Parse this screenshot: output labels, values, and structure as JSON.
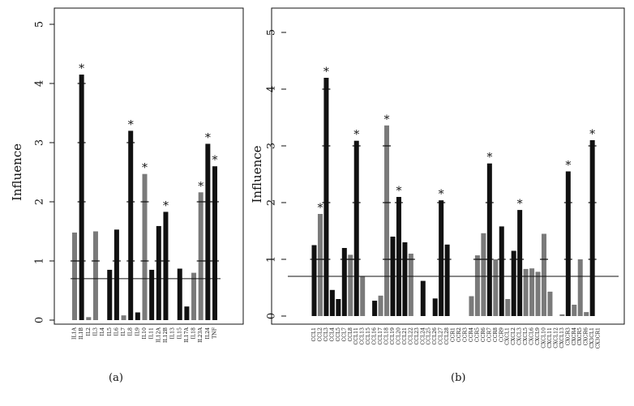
{
  "chart_data": [
    {
      "type": "bar",
      "panel_label": "(a)",
      "ylabel": "Influence",
      "ylim": [
        0,
        5
      ],
      "yticks": [
        "0",
        "1",
        "2",
        "3",
        "4",
        "5"
      ],
      "threshold": 0.7,
      "categories": [
        "IL1A",
        "IL1B",
        "IL2",
        "IL3",
        "IL4",
        "IL5",
        "IL6",
        "IL7",
        "IL8",
        "IL9",
        "IL10",
        "IL11",
        "IL12A",
        "IL12B",
        "IL13",
        "IL15",
        "IL17A",
        "IL18",
        "IL23A",
        "IL24",
        "TNF"
      ],
      "values": [
        1.48,
        4.15,
        0.05,
        1.5,
        0.0,
        0.85,
        1.53,
        0.08,
        3.2,
        0.13,
        2.47,
        0.85,
        1.59,
        1.83,
        0.0,
        0.87,
        0.23,
        0.8,
        2.16,
        2.98,
        2.6
      ],
      "colors": [
        "gray",
        "black",
        "gray",
        "gray",
        "gray",
        "black",
        "black",
        "gray",
        "black",
        "black",
        "gray",
        "black",
        "black",
        "black",
        "black",
        "black",
        "black",
        "gray",
        "gray",
        "black",
        "black"
      ],
      "starred": [
        false,
        true,
        false,
        false,
        false,
        false,
        false,
        false,
        true,
        false,
        true,
        false,
        false,
        true,
        false,
        false,
        false,
        false,
        true,
        true,
        true
      ],
      "star_label": "*",
      "colors_hex": {
        "black": "#111111",
        "gray": "#7a7a7a"
      }
    },
    {
      "type": "bar",
      "panel_label": "(b)",
      "ylabel": "Influence",
      "ylim": [
        0,
        5
      ],
      "yticks": [
        "0",
        "1",
        "2",
        "3",
        "4",
        "5"
      ],
      "threshold": 0.7,
      "categories": [
        "CCL1",
        "CCL2",
        "CCL3",
        "CCL4",
        "CCL5",
        "CCL7",
        "CCL8",
        "CCL11",
        "CCL13",
        "CCL15",
        "CCL16",
        "CCL17",
        "CCL18",
        "CCL19",
        "CCL20",
        "CCL21",
        "CCL22",
        "CCL23",
        "CCL24",
        "CCL25",
        "CCL26",
        "CCL27",
        "CCL28",
        "CCR1",
        "CCR2",
        "CCR3",
        "CCR4",
        "CCR5",
        "CCR6",
        "CCR7",
        "CCR8",
        "CCR9",
        "CXCL1",
        "CXCL2",
        "CXCL3",
        "CXCL5",
        "CXCL6",
        "CXCL9",
        "CXCL10",
        "CXCL11",
        "CXCL12",
        "CXCL13",
        "CXCR3",
        "CXCR4",
        "CXCR5",
        "CXCR6",
        "CX3CL1",
        "CX3CR1"
      ],
      "values": [
        1.25,
        1.8,
        4.2,
        0.46,
        0.3,
        1.2,
        1.08,
        3.09,
        0.7,
        0.0,
        0.27,
        0.36,
        3.36,
        1.4,
        2.1,
        1.3,
        1.1,
        0.0,
        0.62,
        0.0,
        0.31,
        2.04,
        1.26,
        0.0,
        0.0,
        0.0,
        0.35,
        1.07,
        1.46,
        2.69,
        1.0,
        1.58,
        0.3,
        1.15,
        1.87,
        0.83,
        0.84,
        0.78,
        1.45,
        0.43,
        0.0,
        0.03,
        2.55,
        0.2,
        1.0,
        0.07,
        3.1,
        0.0
      ],
      "colors": [
        "black",
        "gray",
        "black",
        "black",
        "black",
        "black",
        "gray",
        "black",
        "gray",
        "black",
        "black",
        "gray",
        "gray",
        "black",
        "black",
        "black",
        "gray",
        "black",
        "black",
        "black",
        "black",
        "black",
        "black",
        "black",
        "black",
        "black",
        "gray",
        "gray",
        "gray",
        "black",
        "gray",
        "black",
        "gray",
        "black",
        "black",
        "gray",
        "gray",
        "gray",
        "gray",
        "gray",
        "black",
        "gray",
        "black",
        "gray",
        "gray",
        "gray",
        "black",
        "black"
      ],
      "starred": [
        false,
        true,
        true,
        false,
        false,
        false,
        false,
        true,
        false,
        false,
        false,
        false,
        true,
        false,
        true,
        false,
        false,
        false,
        false,
        false,
        false,
        true,
        false,
        false,
        false,
        false,
        false,
        false,
        false,
        true,
        false,
        false,
        false,
        false,
        true,
        false,
        false,
        false,
        false,
        false,
        false,
        false,
        true,
        false,
        false,
        false,
        true,
        false
      ],
      "star_label": "*",
      "colors_hex": {
        "black": "#111111",
        "gray": "#7a7a7a"
      }
    }
  ]
}
